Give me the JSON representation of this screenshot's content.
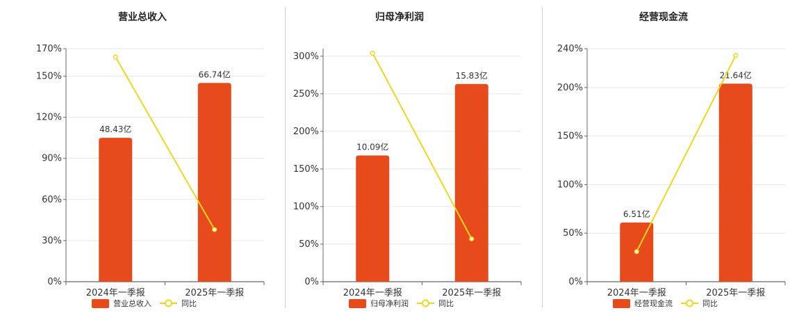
{
  "colors": {
    "bar": "#E84B1B",
    "line": "#F2D61B",
    "grid": "#e6e6ec",
    "axis": "#666666"
  },
  "legend_yoy": "同比",
  "charts": [
    {
      "title": "营业总收入",
      "yticks": [
        "0%",
        "30%",
        "60%",
        "90%",
        "120%",
        "150%",
        "170%"
      ],
      "categories": [
        "2024年一季报",
        "2025年一季报"
      ],
      "bar_labels": [
        "48.43亿",
        "66.74亿"
      ]
    },
    {
      "title": "归母净利润",
      "yticks": [
        "0%",
        "50%",
        "100%",
        "150%",
        "200%",
        "250%",
        "300%"
      ],
      "categories": [
        "2024年一季报",
        "2025年一季报"
      ],
      "bar_labels": [
        "10.09亿",
        "15.83亿"
      ]
    },
    {
      "title": "经营现金流",
      "yticks": [
        "0%",
        "50%",
        "100%",
        "150%",
        "200%",
        "240%"
      ],
      "categories": [
        "2024年一季报",
        "2025年一季报"
      ],
      "bar_labels": [
        "6.51亿",
        "21.64亿"
      ]
    }
  ],
  "chart_data": [
    {
      "type": "bar",
      "title": "营业总收入",
      "categories": [
        "2024年一季报",
        "2025年一季报"
      ],
      "ylim": [
        0,
        170
      ],
      "yticks": [
        0,
        30,
        60,
        90,
        120,
        150,
        170
      ],
      "series": [
        {
          "name": "营业总收入",
          "kind": "bar",
          "values": [
            48.43,
            66.74
          ],
          "unit": "亿",
          "plot_values": [
            105,
            145
          ]
        },
        {
          "name": "同比",
          "kind": "line",
          "values": [
            164,
            38
          ]
        }
      ],
      "legend_position": "bottom"
    },
    {
      "type": "bar",
      "title": "归母净利润",
      "categories": [
        "2024年一季报",
        "2025年一季报"
      ],
      "ylim": [
        0,
        310
      ],
      "yticks": [
        0,
        50,
        100,
        150,
        200,
        250,
        300
      ],
      "series": [
        {
          "name": "归母净利润",
          "kind": "bar",
          "values": [
            10.09,
            15.83
          ],
          "unit": "亿",
          "plot_values": [
            168,
            263
          ]
        },
        {
          "name": "同比",
          "kind": "line",
          "values": [
            304,
            57
          ]
        }
      ],
      "legend_position": "bottom"
    },
    {
      "type": "bar",
      "title": "经营现金流",
      "categories": [
        "2024年一季报",
        "2025年一季报"
      ],
      "ylim": [
        0,
        240
      ],
      "yticks": [
        0,
        50,
        100,
        150,
        200,
        240
      ],
      "series": [
        {
          "name": "经营现金流",
          "kind": "bar",
          "values": [
            6.51,
            21.64
          ],
          "unit": "亿",
          "plot_values": [
            61,
            204
          ]
        },
        {
          "name": "同比",
          "kind": "line",
          "values": [
            31,
            233
          ]
        }
      ],
      "legend_position": "bottom"
    }
  ]
}
